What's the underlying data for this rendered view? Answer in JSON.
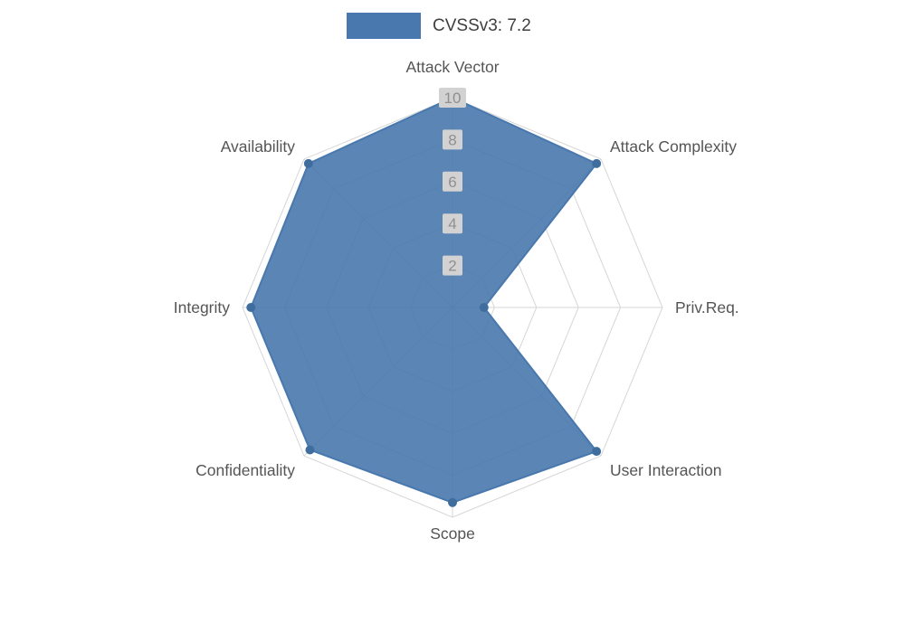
{
  "legend": {
    "label": "CVSSv3: 7.2",
    "swatch_color": "#4878ad"
  },
  "chart_data": {
    "type": "radar",
    "title": "CVSSv3: 7.2",
    "categories": [
      "Attack Vector",
      "Attack Complexity",
      "Priv.Req.",
      "User Interaction",
      "Scope",
      "Confidentiality",
      "Integrity",
      "Availability"
    ],
    "series": [
      {
        "name": "CVSSv3: 7.2",
        "values": [
          10,
          9.7,
          1.5,
          9.7,
          9.3,
          9.6,
          9.6,
          9.7
        ]
      }
    ],
    "radial_ticks": [
      2,
      4,
      6,
      8,
      10
    ],
    "rmax": 10,
    "legend_position": "top-center",
    "grid": true,
    "fill_color": "#4878ad",
    "fill_opacity": 0.9,
    "marker_color": "#3f6e9e",
    "grid_color": "#d6d6d6",
    "tick_box_color": "#d2d2d2",
    "tick_text_color": "#8f8f8f",
    "label_color": "#555555"
  }
}
